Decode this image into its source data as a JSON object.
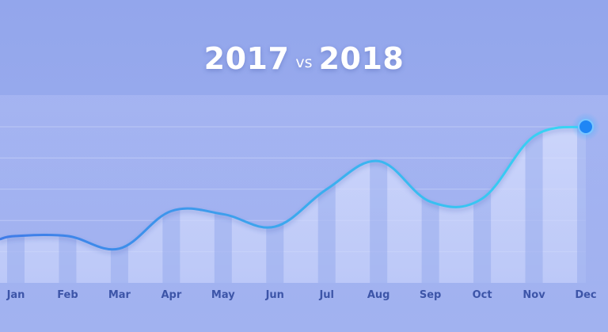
{
  "title": {
    "left_label": "2017",
    "vs_label": "vs",
    "right_label": "2018"
  },
  "colors": {
    "background": "#96a9ed",
    "line_start": "#3f7be8",
    "line_end": "#37d7f4",
    "area_fill": "#d4dcfd",
    "axis_label": "#3d55a8",
    "end_dot": "#1f86f5"
  },
  "chart_data": {
    "type": "area",
    "title": "2017 vs 2018",
    "categories": [
      "Jan",
      "Feb",
      "Mar",
      "Apr",
      "May",
      "Jun",
      "Jul",
      "Aug",
      "Sep",
      "Oct",
      "Nov",
      "Dec"
    ],
    "values": [
      1.5,
      1.5,
      1.1,
      2.3,
      2.2,
      1.8,
      3.0,
      3.9,
      2.6,
      2.7,
      4.7,
      5.0
    ],
    "ylim": [
      0,
      5
    ],
    "grid": true,
    "legend": "none",
    "xlabel": "",
    "ylabel": ""
  }
}
